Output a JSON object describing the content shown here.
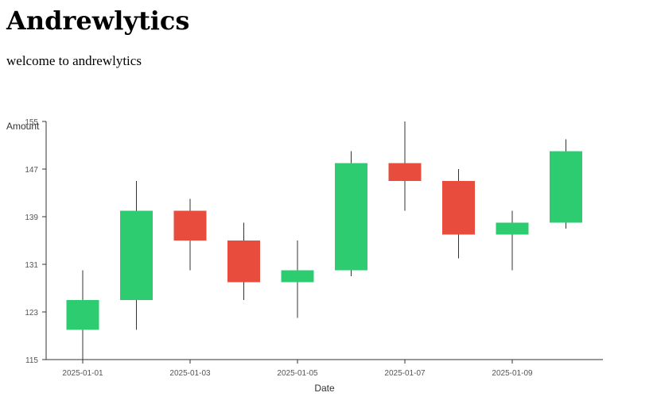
{
  "header": {
    "title": "Andrewlytics",
    "subtitle": "welcome to andrewlytics"
  },
  "chart_data": {
    "type": "candlestick",
    "xlabel": "Date",
    "ylabel": "Amount",
    "ylim": [
      115,
      155
    ],
    "yticks": [
      115,
      123,
      131,
      139,
      147,
      155
    ],
    "xtick_labels": [
      "2025-01-01",
      "2025-01-03",
      "2025-01-05",
      "2025-01-07",
      "2025-01-09"
    ],
    "grid": false,
    "colors": {
      "up": "#2ecc71",
      "down": "#e74c3c",
      "wick": "#333333",
      "axis": "#333333"
    },
    "candles": [
      {
        "date": "2025-01-01",
        "open": 120,
        "close": 125,
        "high": 130,
        "low": 115
      },
      {
        "date": "2025-01-02",
        "open": 125,
        "close": 140,
        "high": 145,
        "low": 120
      },
      {
        "date": "2025-01-03",
        "open": 140,
        "close": 135,
        "high": 142,
        "low": 130
      },
      {
        "date": "2025-01-04",
        "open": 135,
        "close": 128,
        "high": 138,
        "low": 125
      },
      {
        "date": "2025-01-05",
        "open": 128,
        "close": 130,
        "high": 135,
        "low": 122
      },
      {
        "date": "2025-01-06",
        "open": 130,
        "close": 148,
        "high": 150,
        "low": 129
      },
      {
        "date": "2025-01-07",
        "open": 148,
        "close": 145,
        "high": 155,
        "low": 140
      },
      {
        "date": "2025-01-08",
        "open": 145,
        "close": 136,
        "high": 147,
        "low": 132
      },
      {
        "date": "2025-01-09",
        "open": 136,
        "close": 138,
        "high": 140,
        "low": 130
      },
      {
        "date": "2025-01-10",
        "open": 138,
        "close": 150,
        "high": 152,
        "low": 137
      }
    ]
  }
}
